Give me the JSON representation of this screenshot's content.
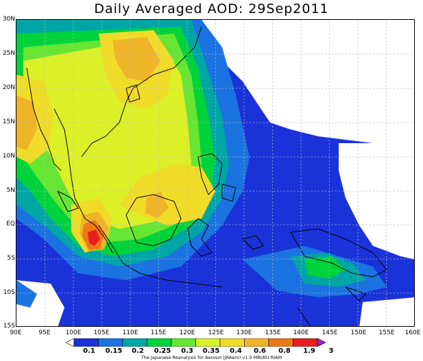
{
  "title": "Daily Averaged AOD: 29Sep2011",
  "y_ticks": [
    "30N",
    "25N",
    "20N",
    "15N",
    "10N",
    "5N",
    "EQ",
    "5S",
    "10S",
    "15S"
  ],
  "x_ticks": [
    "90E",
    "95E",
    "100E",
    "105E",
    "110E",
    "115E",
    "120E",
    "125E",
    "130E",
    "135E",
    "140E",
    "145E",
    "150E",
    "155E",
    "160E"
  ],
  "colorbar": {
    "labels": [
      "0.1",
      "0.15",
      "0.2",
      "0.25",
      "0.3",
      "0.35",
      "0.4",
      "0.6",
      "0.8",
      "1.9",
      "3"
    ],
    "colors": [
      "#ffffff",
      "#1a33d9",
      "#1a73e0",
      "#00a6a6",
      "#00d23c",
      "#66e633",
      "#dcf028",
      "#f0dc28",
      "#f0b428",
      "#f07814",
      "#e61e1e",
      "#9620c8"
    ]
  },
  "credit": "The Japanese Reanalysis for Aerosol (JRAero) v1.0 MRI/KU RIAM"
}
